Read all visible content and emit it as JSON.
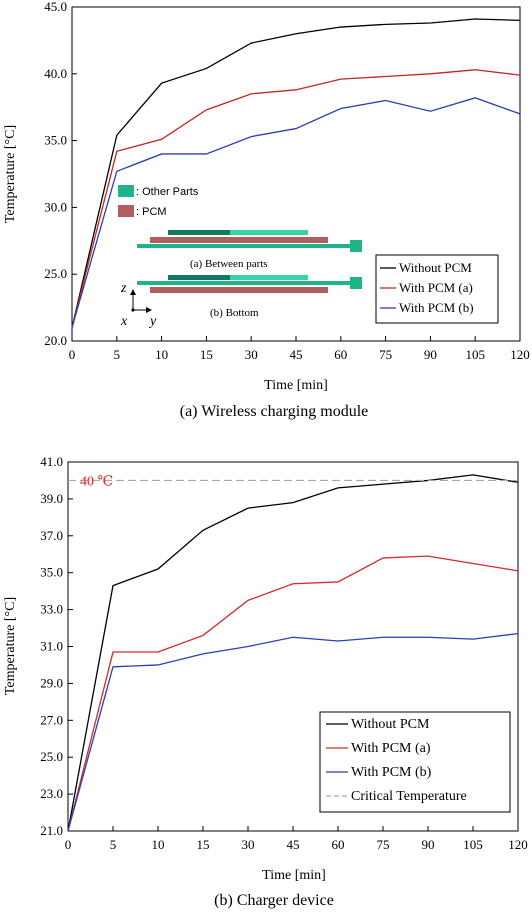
{
  "chart_data": [
    {
      "type": "line",
      "caption": "(a) Wireless charging module",
      "xlabel": "Time [min]",
      "ylabel": "Temperature [°C]",
      "categories": [
        "0",
        "5",
        "10",
        "15",
        "30",
        "45",
        "60",
        "75",
        "90",
        "105",
        "120"
      ],
      "ylim": [
        20,
        45
      ],
      "yticks": [
        "20.0",
        "25.0",
        "30.0",
        "35.0",
        "40.0",
        "45.0"
      ],
      "grid": false,
      "legend_position": "bottom-right",
      "series": [
        {
          "name": "Without PCM",
          "color": "#000000",
          "values": [
            21.0,
            35.4,
            39.3,
            40.4,
            42.3,
            43.0,
            43.5,
            43.7,
            43.8,
            44.1,
            44.0
          ]
        },
        {
          "name": "With PCM (a)",
          "color": "#c0281e",
          "values": [
            21.0,
            34.2,
            35.1,
            37.3,
            38.5,
            38.8,
            39.6,
            39.8,
            40.0,
            40.3,
            39.9
          ]
        },
        {
          "name": "With PCM (b)",
          "color": "#2a3fb5",
          "values": [
            21.0,
            32.7,
            34.0,
            34.0,
            35.3,
            35.9,
            37.4,
            38.0,
            37.2,
            38.2,
            37.0
          ]
        }
      ],
      "inset": {
        "legend": [
          {
            "label": ": Other Parts",
            "color": "#1fb389"
          },
          {
            "label": ": PCM",
            "color": "#b05e5e"
          }
        ],
        "label_a": "(a) Between parts",
        "label_b": "(b) Bottom",
        "axis_z": "z",
        "axis_x": "x",
        "axis_y": "y"
      }
    },
    {
      "type": "line",
      "caption": "(b) Charger device",
      "xlabel": "Time [min]",
      "ylabel": "Temperature [°C]",
      "categories": [
        "0",
        "5",
        "10",
        "15",
        "30",
        "45",
        "60",
        "75",
        "90",
        "105",
        "120"
      ],
      "ylim": [
        21,
        41
      ],
      "yticks": [
        "21.0",
        "23.0",
        "25.0",
        "27.0",
        "29.0",
        "31.0",
        "33.0",
        "35.0",
        "37.0",
        "39.0",
        "41.0"
      ],
      "grid": false,
      "legend_position": "bottom-right",
      "annotation": {
        "text": "40 ℃",
        "value": 40,
        "color": "#d42a2a"
      },
      "series": [
        {
          "name": "Without PCM",
          "color": "#000000",
          "values": [
            21.0,
            34.3,
            35.2,
            37.3,
            38.5,
            38.8,
            39.6,
            39.8,
            40.0,
            40.3,
            39.9
          ]
        },
        {
          "name": "With PCM (a)",
          "color": "#d42a2a",
          "values": [
            21.0,
            30.7,
            30.7,
            31.6,
            33.5,
            34.4,
            34.5,
            35.8,
            35.9,
            35.5,
            35.1
          ]
        },
        {
          "name": "With PCM (b)",
          "color": "#2a3fb5",
          "values": [
            21.0,
            29.9,
            30.0,
            30.6,
            31.0,
            31.5,
            31.3,
            31.5,
            31.5,
            31.4,
            31.7
          ]
        },
        {
          "name": "Critical Temperature",
          "color": "#a8a8a8",
          "dashed": true,
          "values": [
            40,
            40,
            40,
            40,
            40,
            40,
            40,
            40,
            40,
            40,
            40
          ]
        }
      ]
    }
  ]
}
